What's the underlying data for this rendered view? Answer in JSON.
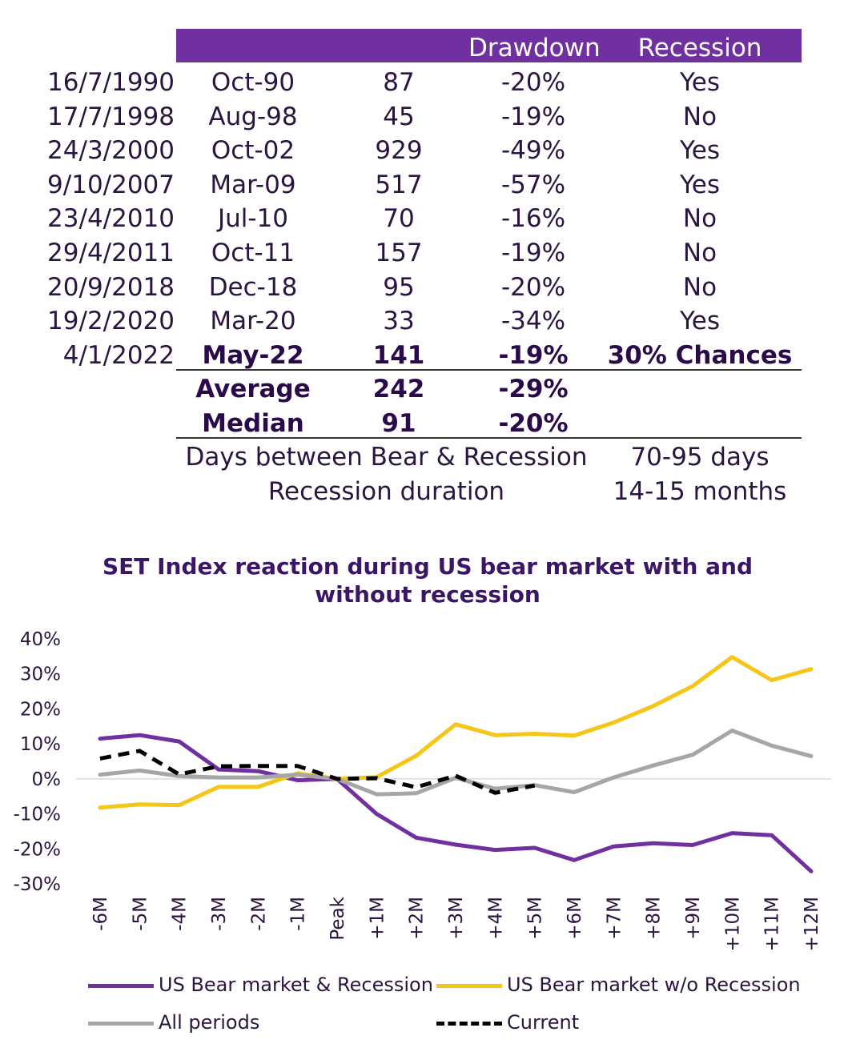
{
  "table": {
    "headers": [
      "",
      "",
      "",
      "Drawdown",
      "Recession"
    ],
    "rows": [
      {
        "date": "16/7/1990",
        "month": "Oct-90",
        "days": "87",
        "drawdown": "-20%",
        "recession": "Yes"
      },
      {
        "date": "17/7/1998",
        "month": "Aug-98",
        "days": "45",
        "drawdown": "-19%",
        "recession": "No"
      },
      {
        "date": "24/3/2000",
        "month": "Oct-02",
        "days": "929",
        "drawdown": "-49%",
        "recession": "Yes"
      },
      {
        "date": "9/10/2007",
        "month": "Mar-09",
        "days": "517",
        "drawdown": "-57%",
        "recession": "Yes"
      },
      {
        "date": "23/4/2010",
        "month": "Jul-10",
        "days": "70",
        "drawdown": "-16%",
        "recession": "No"
      },
      {
        "date": "29/4/2011",
        "month": "Oct-11",
        "days": "157",
        "drawdown": "-19%",
        "recession": "No"
      },
      {
        "date": "20/9/2018",
        "month": "Dec-18",
        "days": "95",
        "drawdown": "-20%",
        "recession": "No"
      },
      {
        "date": "19/2/2020",
        "month": "Mar-20",
        "days": "33",
        "drawdown": "-34%",
        "recession": "Yes"
      },
      {
        "date": "4/1/2022",
        "month": "May-22",
        "days": "141",
        "drawdown": "-19%",
        "recession": "30% Chances"
      }
    ],
    "summary": [
      {
        "label": "Average",
        "days": "242",
        "drawdown": "-29%"
      },
      {
        "label": "Median",
        "days": "91",
        "drawdown": "-20%"
      }
    ],
    "footer": [
      {
        "label": "Days between Bear & Recession",
        "value": "70-95 days"
      },
      {
        "label": "Recession duration",
        "value": "14-15 months"
      }
    ]
  },
  "chart_data": {
    "type": "line",
    "title": "SET Index reaction during US bear market with and without recession",
    "title_lines": [
      "SET Index reaction during US bear market with and",
      "without recession"
    ],
    "x": [
      "-6M",
      "-5M",
      "-4M",
      "-3M",
      "-2M",
      "-1M",
      "Peak",
      "+1M",
      "+2M",
      "+3M",
      "+4M",
      "+5M",
      "+6M",
      "+7M",
      "+8M",
      "+9M",
      "+10M",
      "+11M",
      "+12M"
    ],
    "ylim": [
      -0.3,
      0.4
    ],
    "yticks": [
      0.4,
      0.3,
      0.2,
      0.1,
      0.0,
      -0.1,
      -0.2,
      -0.3
    ],
    "ytick_labels": [
      "40%",
      "30%",
      "20%",
      "10%",
      "0%",
      "-10%",
      "-20%",
      "-30%"
    ],
    "legend": "bottom",
    "grid": false,
    "series": [
      {
        "name": "US Bear market & Recession",
        "color": "#7030a0",
        "dash": false,
        "values": [
          0.115,
          0.125,
          0.107,
          0.027,
          0.022,
          -0.004,
          0.0,
          -0.1,
          -0.168,
          -0.188,
          -0.203,
          -0.197,
          -0.232,
          -0.193,
          -0.184,
          -0.189,
          -0.155,
          -0.161,
          -0.264
        ]
      },
      {
        "name": "US Bear market w/o Recession",
        "color": "#f5c518",
        "dash": false,
        "values": [
          -0.082,
          -0.073,
          -0.075,
          -0.023,
          -0.023,
          0.016,
          0.0,
          0.005,
          0.066,
          0.156,
          0.125,
          0.129,
          0.124,
          0.161,
          0.208,
          0.265,
          0.348,
          0.282,
          0.314
        ]
      },
      {
        "name": "All periods",
        "color": "#a6a6a6",
        "dash": false,
        "values": [
          0.012,
          0.024,
          0.008,
          0.004,
          0.004,
          0.012,
          0.0,
          -0.044,
          -0.041,
          0.003,
          -0.028,
          -0.018,
          -0.038,
          0.004,
          0.038,
          0.069,
          0.138,
          0.095,
          0.065
        ]
      },
      {
        "name": "Current",
        "color": "#000000",
        "dash": true,
        "values": [
          0.058,
          0.08,
          0.013,
          0.036,
          0.037,
          0.037,
          0.0,
          0.002,
          -0.024,
          0.009,
          -0.04,
          -0.019,
          null,
          null,
          null,
          null,
          null,
          null,
          null
        ]
      }
    ]
  }
}
